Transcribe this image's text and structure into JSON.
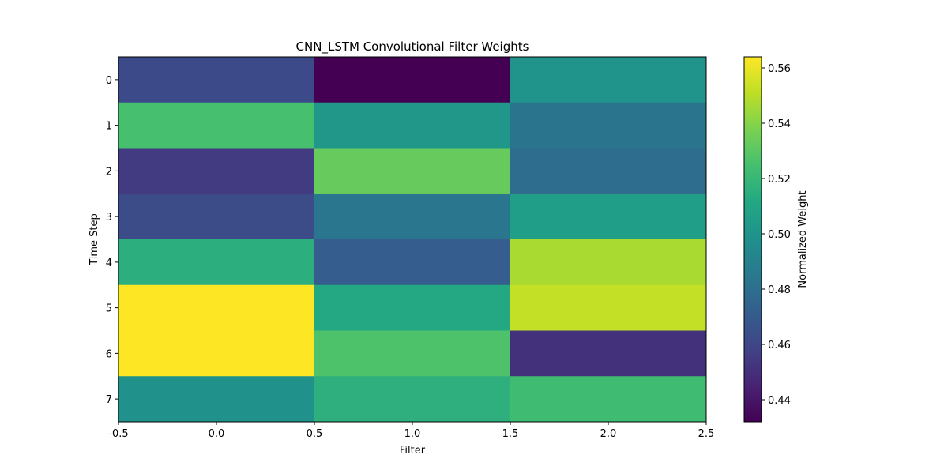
{
  "chart_data": {
    "type": "heatmap",
    "title": "CNN_LSTM Convolutional Filter Weights",
    "xlabel": "Filter",
    "ylabel": "Time Step",
    "colorbar_label": "Normalized Weight",
    "colormap": "viridis",
    "x_categories": [
      0,
      1,
      2
    ],
    "y_categories": [
      0,
      1,
      2,
      3,
      4,
      5,
      6,
      7
    ],
    "xlim": [
      -0.5,
      2.5
    ],
    "x_ticks": [
      "-0.5",
      "0.0",
      "0.5",
      "1.0",
      "1.5",
      "2.0",
      "2.5"
    ],
    "y_ticks": [
      "0",
      "1",
      "2",
      "3",
      "4",
      "5",
      "6",
      "7"
    ],
    "clim": [
      0.432,
      0.564
    ],
    "colorbar_ticks": [
      "0.44",
      "0.46",
      "0.48",
      "0.50",
      "0.52",
      "0.54",
      "0.56"
    ],
    "values": [
      [
        0.462,
        0.432,
        0.5
      ],
      [
        0.525,
        0.502,
        0.483
      ],
      [
        0.455,
        0.533,
        0.479
      ],
      [
        0.463,
        0.484,
        0.506
      ],
      [
        0.515,
        0.471,
        0.547
      ],
      [
        0.564,
        0.512,
        0.552
      ],
      [
        0.564,
        0.527,
        0.451
      ],
      [
        0.499,
        0.516,
        0.523
      ]
    ]
  }
}
